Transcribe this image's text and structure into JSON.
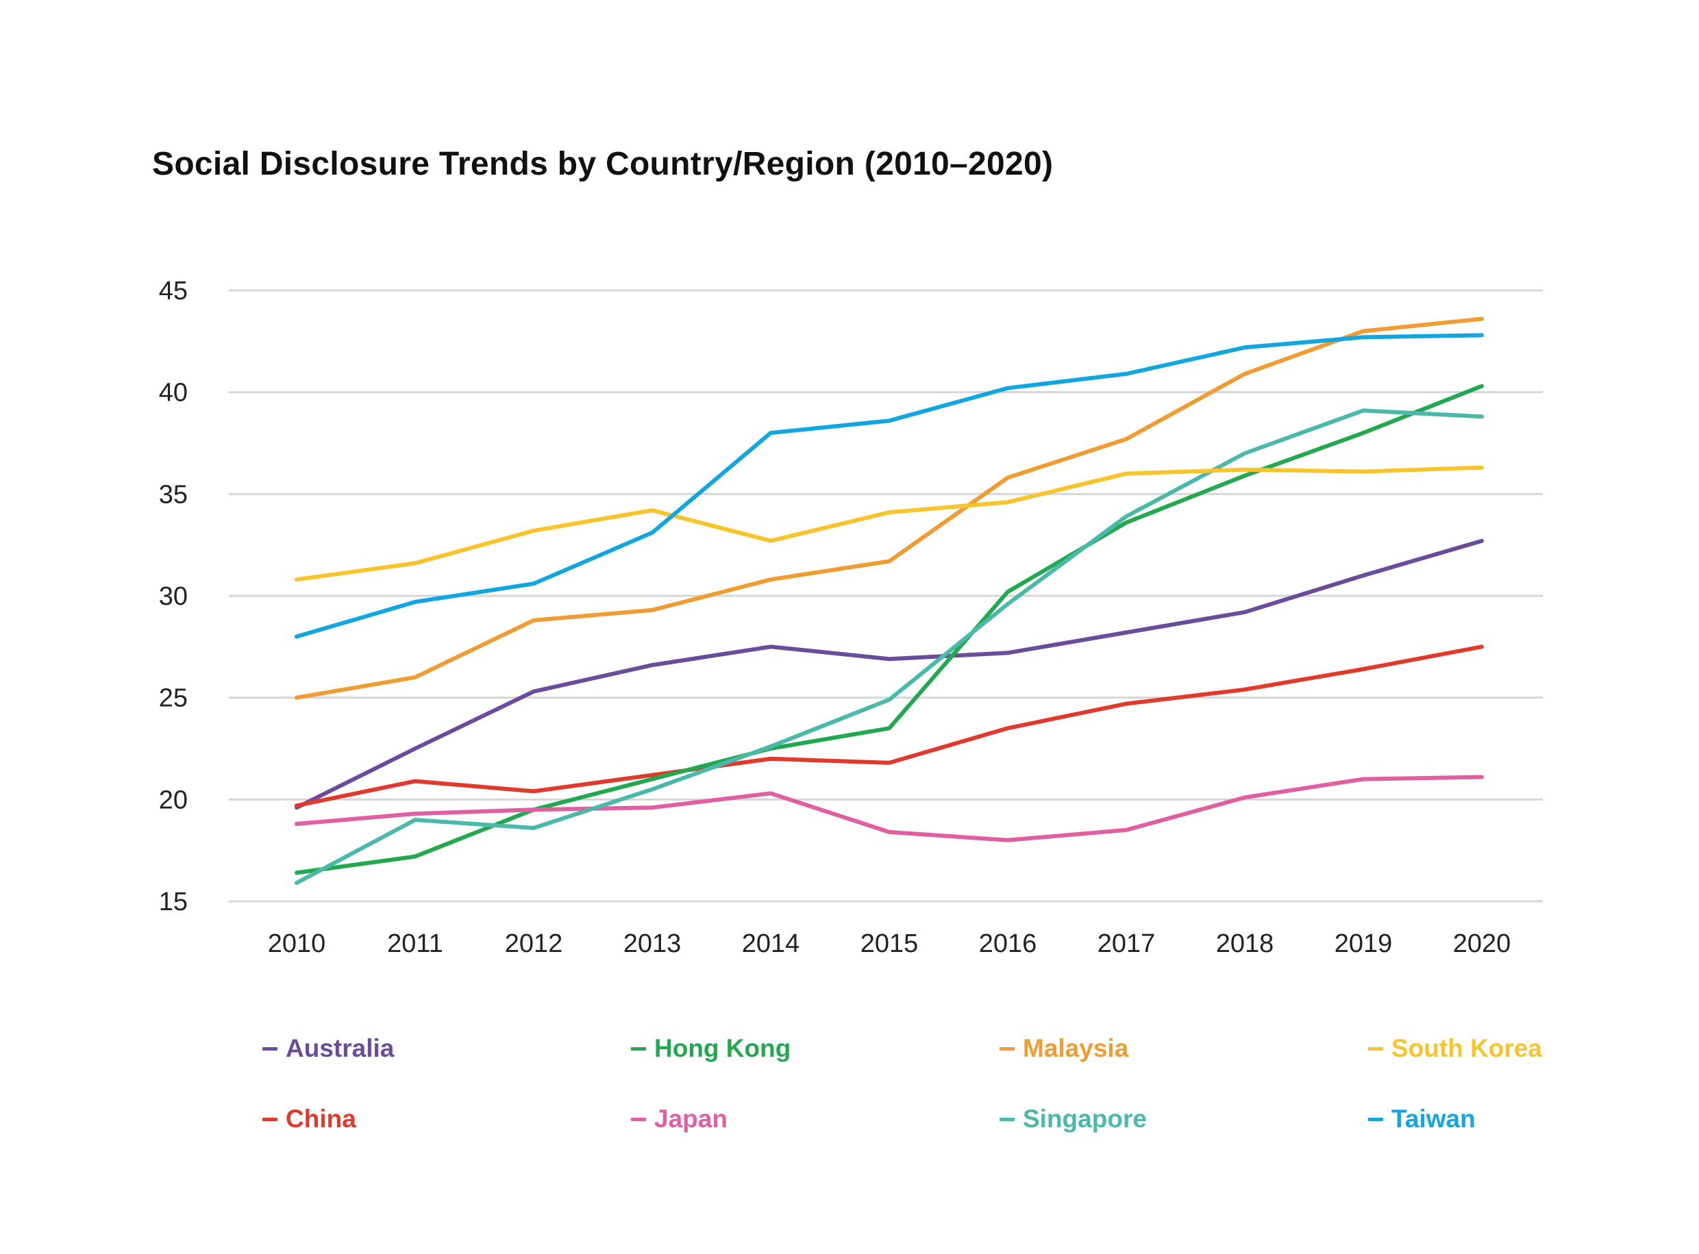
{
  "chart_data": {
    "type": "line",
    "title": "Social Disclosure Trends by Country/Region (2010–2020)",
    "xlabel": "",
    "ylabel": "",
    "x": [
      "2010",
      "2011",
      "2012",
      "2013",
      "2014",
      "2015",
      "2016",
      "2017",
      "2018",
      "2019",
      "2020"
    ],
    "y_ticks": [
      "15",
      "20",
      "25",
      "30",
      "35",
      "40",
      "45"
    ],
    "ylim": [
      15,
      45
    ],
    "grid": true,
    "legend_position": "bottom",
    "series": [
      {
        "name": "Australia",
        "color": "#6b4c9a",
        "values": [
          19.6,
          22.5,
          25.3,
          26.6,
          27.5,
          26.9,
          27.2,
          28.2,
          29.2,
          31.0,
          32.7
        ]
      },
      {
        "name": "China",
        "color": "#e03a2c",
        "values": [
          19.7,
          20.9,
          20.4,
          21.2,
          22.0,
          21.8,
          23.5,
          24.7,
          25.4,
          26.4,
          27.5
        ]
      },
      {
        "name": "Hong Kong",
        "color": "#22a94f",
        "values": [
          16.4,
          17.2,
          19.5,
          21.0,
          22.5,
          23.5,
          30.2,
          33.6,
          35.9,
          38.0,
          40.3
        ]
      },
      {
        "name": "Japan",
        "color": "#e05fa0",
        "values": [
          18.8,
          19.3,
          19.5,
          19.6,
          20.3,
          18.4,
          18.0,
          18.5,
          20.1,
          21.0,
          21.1
        ]
      },
      {
        "name": "Malaysia",
        "color": "#ef9c32",
        "values": [
          25.0,
          26.0,
          28.8,
          29.3,
          30.8,
          31.7,
          35.8,
          37.7,
          40.9,
          43.0,
          43.6
        ]
      },
      {
        "name": "Singapore",
        "color": "#4bb9a9",
        "values": [
          15.9,
          19.0,
          18.6,
          20.5,
          22.6,
          24.9,
          29.6,
          33.9,
          37.0,
          39.1,
          38.8
        ]
      },
      {
        "name": "South Korea",
        "color": "#f7c52b",
        "values": [
          30.8,
          31.6,
          33.2,
          34.2,
          32.7,
          34.1,
          34.6,
          36.0,
          36.2,
          36.1,
          36.3
        ]
      },
      {
        "name": "Taiwan",
        "color": "#12a6de",
        "values": [
          28.0,
          29.7,
          30.6,
          33.1,
          38.0,
          38.6,
          40.2,
          40.9,
          42.2,
          42.7,
          42.8
        ]
      }
    ],
    "legend": [
      {
        "label": "Australia",
        "color": "#6b4c9a"
      },
      {
        "label": "Hong Kong",
        "color": "#22a94f"
      },
      {
        "label": "Malaysia",
        "color": "#ef9c32"
      },
      {
        "label": "South Korea",
        "color": "#f7c52b"
      },
      {
        "label": "China",
        "color": "#e03a2c"
      },
      {
        "label": "Japan",
        "color": "#e05fa0"
      },
      {
        "label": "Singapore",
        "color": "#4bb9a9"
      },
      {
        "label": "Taiwan",
        "color": "#12a6de"
      }
    ]
  }
}
